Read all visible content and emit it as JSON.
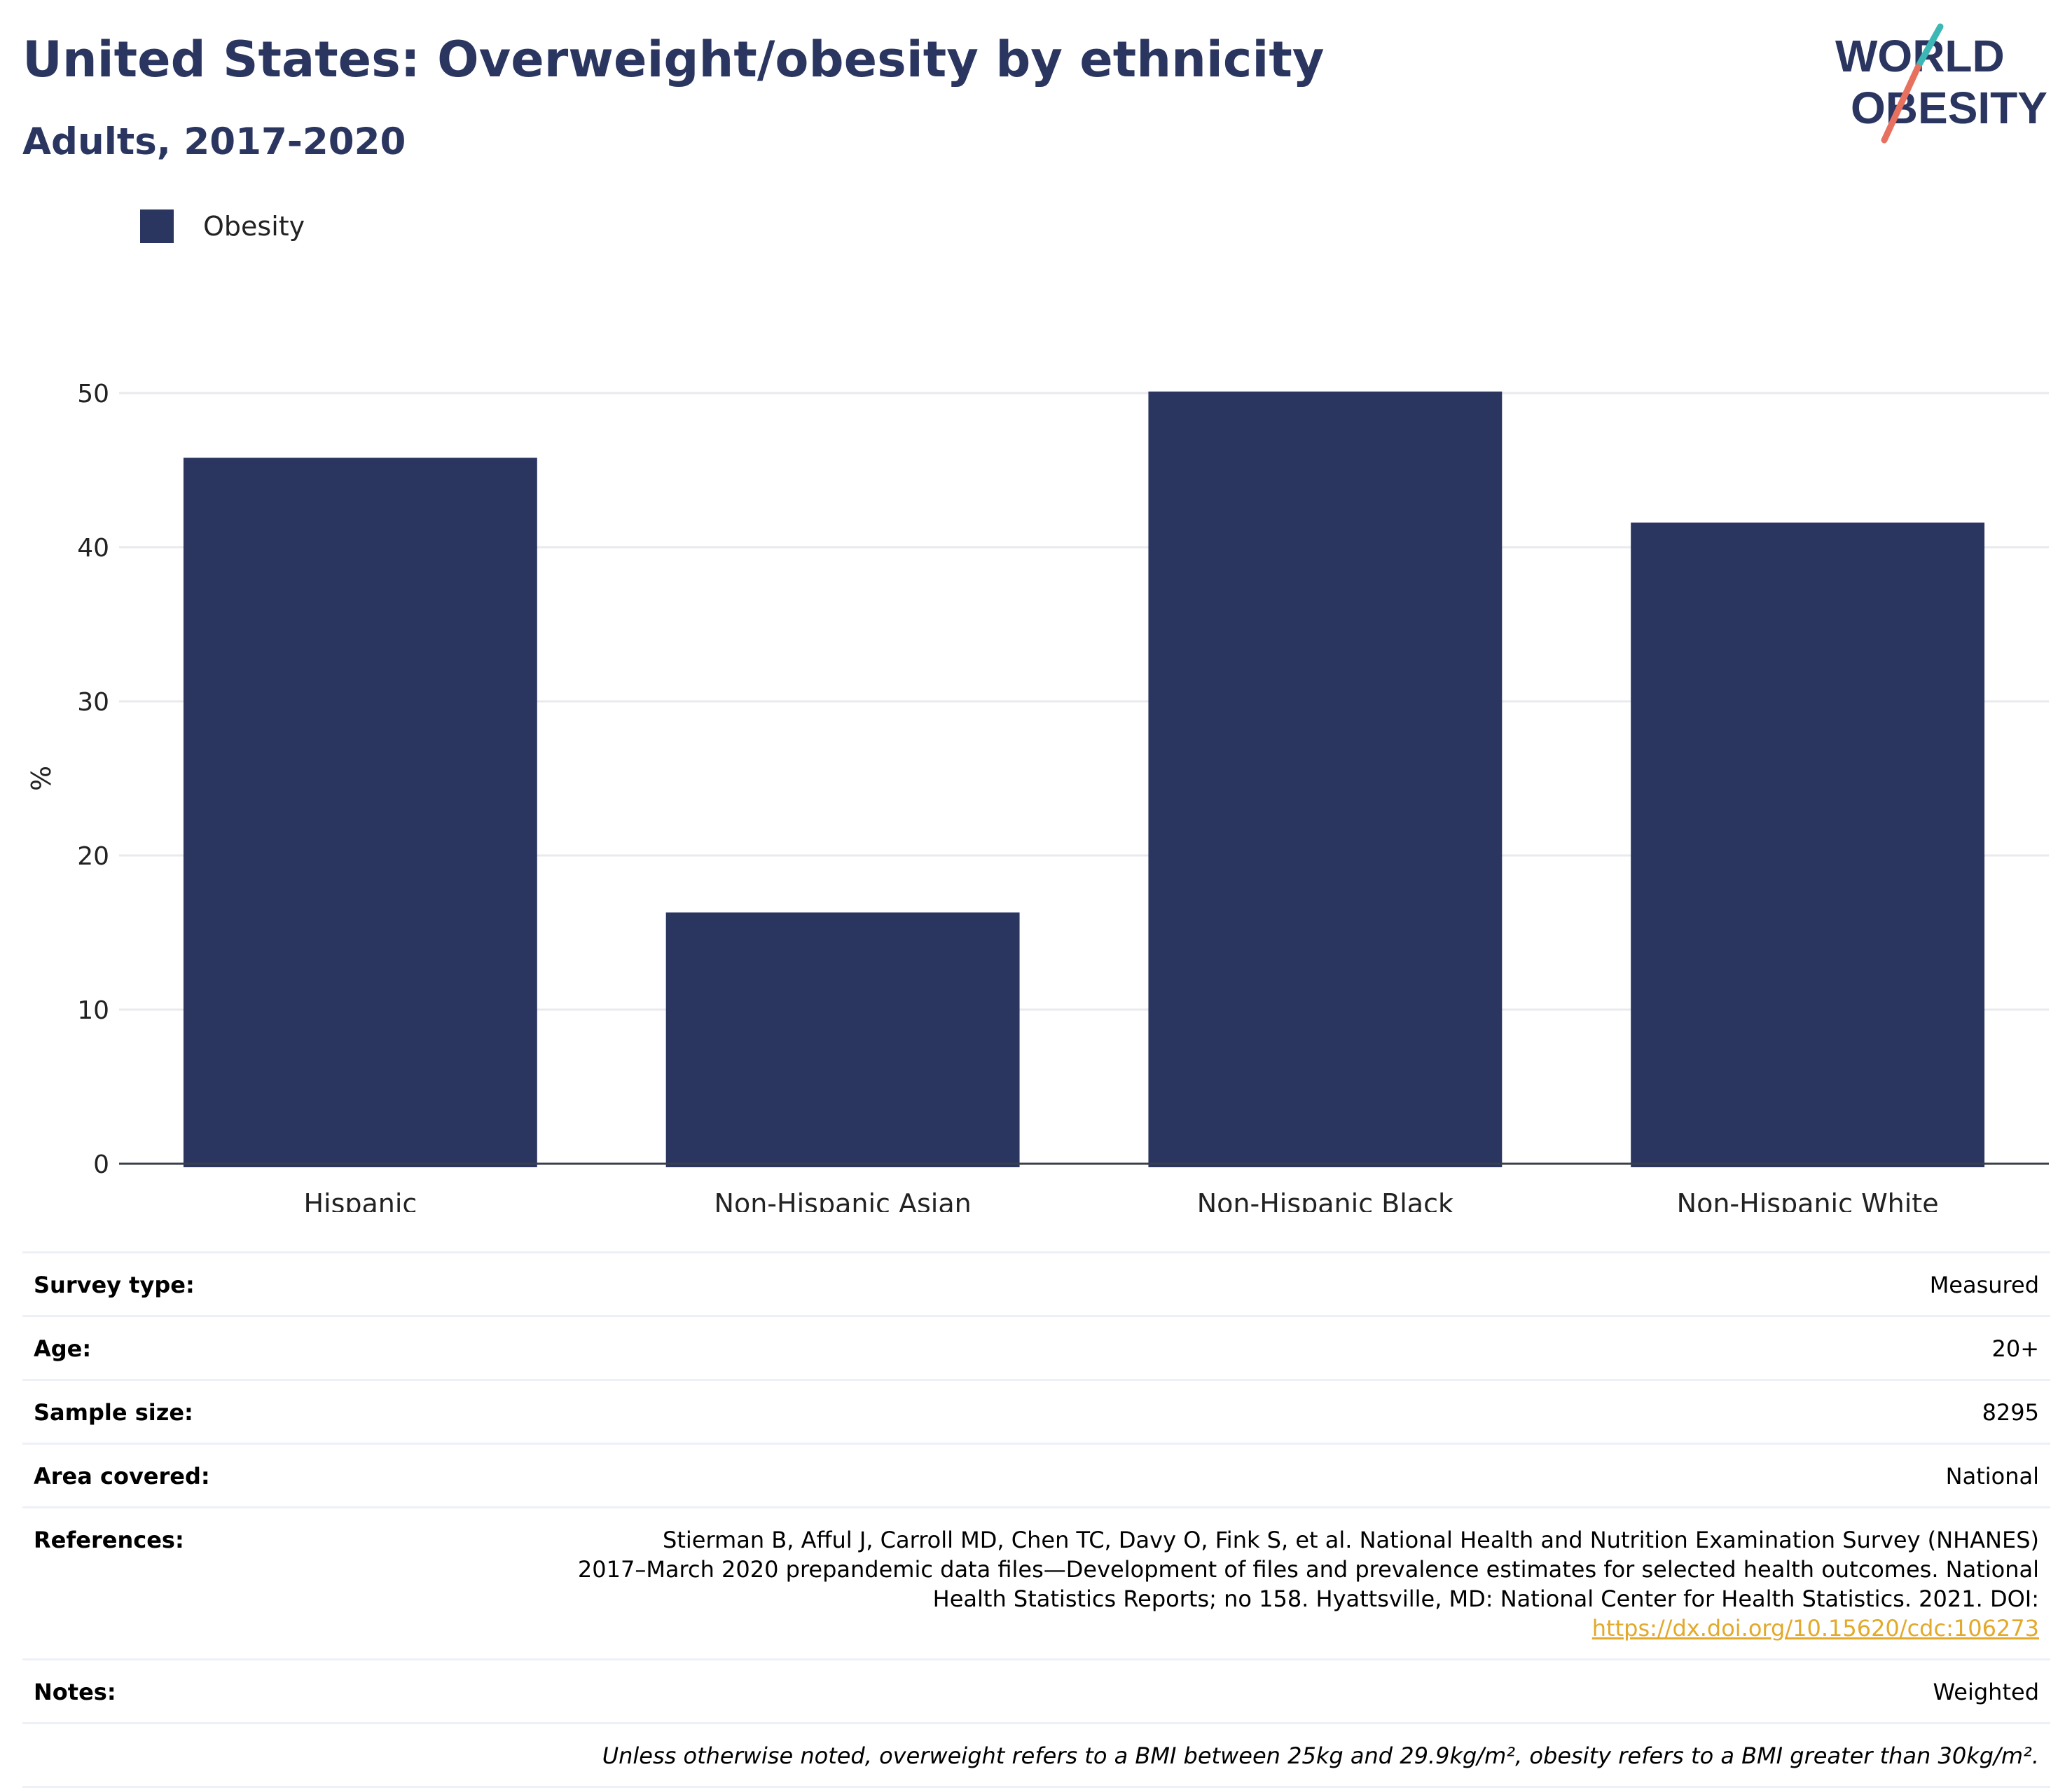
{
  "header": {
    "title": "United States: Overweight/obesity by ethnicity",
    "subtitle": "Adults, 2017-2020"
  },
  "logo": {
    "line1": "WORLD",
    "line2": "OBESITY",
    "accent_teal": "#3bb8b6",
    "accent_coral": "#e8705f",
    "text_color": "#2a3560"
  },
  "chart_data": {
    "type": "bar",
    "categories": [
      "Hispanic",
      "Non-Hispanic Asian",
      "Non-Hispanic Black",
      "Non-Hispanic White"
    ],
    "series": [
      {
        "name": "Obesity",
        "values": [
          45.8,
          16.3,
          50.1,
          41.6
        ],
        "color": "#2a3560"
      }
    ],
    "title": "United States: Overweight/obesity by ethnicity",
    "subtitle": "Adults, 2017-2020",
    "xlabel": "",
    "ylabel": "%",
    "ylim": [
      0,
      50
    ],
    "yticks": [
      0,
      10,
      20,
      30,
      40,
      50
    ],
    "grid": true,
    "legend_position": "top-left"
  },
  "info": {
    "survey_type": {
      "label": "Survey type:",
      "value": "Measured"
    },
    "age": {
      "label": "Age:",
      "value": "20+"
    },
    "sample_size": {
      "label": "Sample size:",
      "value": "8295"
    },
    "area": {
      "label": "Area covered:",
      "value": "National"
    },
    "references": {
      "label": "References:",
      "line1": "Stierman B, Afful J, Carroll MD, Chen TC, Davy O, Fink S, et al. National Health and Nutrition Examination Survey (NHANES)",
      "line2": "2017–March 2020 prepandemic data files—Development of files and prevalence estimates for selected health outcomes. National",
      "line3": "Health Statistics Reports; no 158. Hyattsville, MD: National Center for Health Statistics. 2021. DOI:",
      "link": "https://dx.doi.org/10.15620/cdc:106273"
    },
    "notes": {
      "label": "Notes:",
      "value": "Weighted"
    },
    "footnote": "Unless otherwise noted, overweight refers to a BMI between 25kg and 29.9kg/m², obesity refers to a BMI greater than 30kg/m²."
  }
}
